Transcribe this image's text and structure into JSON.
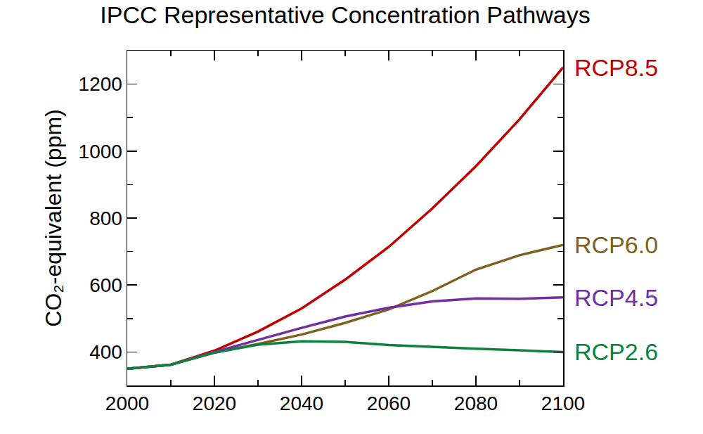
{
  "chart_data": {
    "type": "line",
    "title": "IPCC Representative Concentration Pathways",
    "y_label": "CO₂-equivalent (ppm)",
    "x": [
      2000,
      2010,
      2020,
      2030,
      2040,
      2050,
      2060,
      2070,
      2080,
      2090,
      2100
    ],
    "series": [
      {
        "name": "RCP8.5",
        "color": "#c00000",
        "values": [
          350,
          362,
          404,
          461,
          530,
          616,
          714,
          829,
          955,
          1095,
          1250
        ]
      },
      {
        "name": "RCP6.0",
        "color": "#806020",
        "values": [
          350,
          362,
          398,
          424,
          452,
          487,
          527,
          582,
          646,
          689,
          720
        ]
      },
      {
        "name": "RCP4.5",
        "color": "#7030a0",
        "values": [
          350,
          362,
          400,
          436,
          472,
          506,
          532,
          551,
          560,
          559,
          563
        ]
      },
      {
        "name": "RCP2.6",
        "color": "#0f8040",
        "values": [
          350,
          362,
          398,
          422,
          432,
          430,
          421,
          415,
          410,
          405,
          400
        ]
      }
    ],
    "xlim": [
      2000,
      2100
    ],
    "ylim": [
      300,
      1300
    ],
    "xticks": [
      2000,
      2020,
      2040,
      2060,
      2080,
      2100
    ],
    "yticks": [
      400,
      600,
      800,
      1000,
      1200
    ],
    "grid": false
  }
}
